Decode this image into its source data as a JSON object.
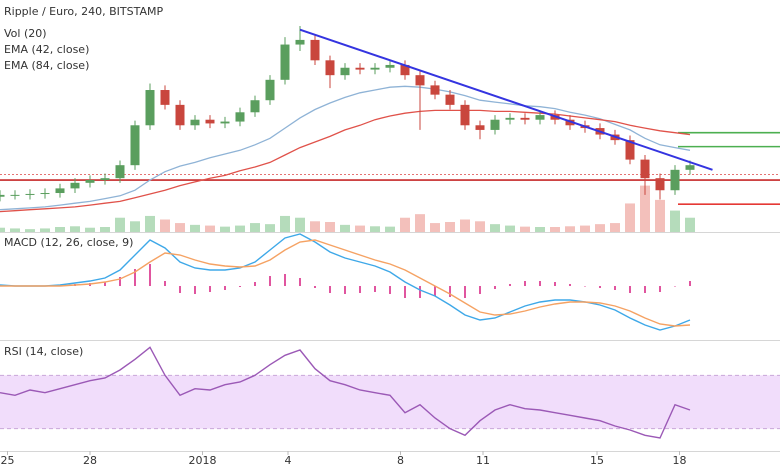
{
  "chart_data": [
    {
      "type": "candlestick",
      "title": "Ripple / Euro, 240, BITSTAMP",
      "xlim": [
        0,
        52
      ],
      "xticks": [
        {
          "value": 0.5,
          "label": "25"
        },
        {
          "value": 6,
          "label": "28"
        },
        {
          "value": 13.5,
          "label": "2018"
        },
        {
          "value": 19.2,
          "label": "4"
        },
        {
          "value": 26.7,
          "label": "8"
        },
        {
          "value": 32.2,
          "label": "11"
        },
        {
          "value": 39.8,
          "label": "15"
        },
        {
          "value": 45.3,
          "label": "18"
        }
      ],
      "ylim": [
        0.5,
        3.0
      ],
      "up_color": "#5a9e5e",
      "down_color": "#c9463d",
      "open": [
        0.88,
        0.9,
        0.9,
        0.91,
        0.92,
        0.97,
        1.03,
        1.06,
        1.08,
        1.22,
        1.65,
        2.03,
        1.87,
        1.65,
        1.71,
        1.67,
        1.69,
        1.79,
        1.92,
        2.14,
        2.52,
        2.57,
        2.35,
        2.19,
        2.27,
        2.25,
        2.27,
        2.3,
        2.19,
        2.08,
        1.98,
        1.87,
        1.65,
        1.6,
        1.71,
        1.73,
        1.71,
        1.76,
        1.71,
        1.65,
        1.62,
        1.55,
        1.49,
        1.28,
        1.08,
        0.95,
        1.17
      ],
      "high": [
        0.95,
        0.95,
        0.96,
        0.97,
        1.02,
        1.08,
        1.11,
        1.13,
        1.27,
        1.7,
        2.1,
        2.08,
        1.92,
        1.76,
        1.76,
        1.74,
        1.84,
        1.97,
        2.19,
        2.6,
        2.72,
        2.62,
        2.4,
        2.32,
        2.32,
        2.32,
        2.35,
        2.35,
        2.24,
        2.13,
        2.03,
        1.92,
        1.7,
        1.76,
        1.78,
        1.78,
        1.81,
        1.81,
        1.76,
        1.7,
        1.67,
        1.6,
        1.54,
        1.33,
        1.13,
        1.22,
        1.27
      ],
      "low": [
        0.83,
        0.85,
        0.85,
        0.86,
        0.87,
        0.92,
        0.98,
        1.01,
        1.03,
        1.17,
        1.6,
        1.82,
        1.6,
        1.6,
        1.62,
        1.62,
        1.64,
        1.74,
        1.87,
        2.09,
        2.45,
        2.3,
        2.05,
        2.14,
        2.2,
        2.2,
        2.22,
        2.14,
        1.6,
        1.93,
        1.82,
        1.6,
        1.5,
        1.55,
        1.66,
        1.66,
        1.66,
        1.66,
        1.6,
        1.57,
        1.5,
        1.44,
        1.23,
        0.9,
        0.85,
        0.9,
        1.12
      ],
      "close": [
        0.9,
        0.9,
        0.91,
        0.92,
        0.97,
        1.03,
        1.06,
        1.08,
        1.22,
        1.65,
        2.03,
        1.87,
        1.65,
        1.71,
        1.67,
        1.69,
        1.79,
        1.92,
        2.14,
        2.52,
        2.57,
        2.35,
        2.19,
        2.27,
        2.25,
        2.27,
        2.3,
        2.19,
        2.08,
        1.98,
        1.87,
        1.65,
        1.6,
        1.71,
        1.73,
        1.71,
        1.76,
        1.71,
        1.65,
        1.62,
        1.55,
        1.49,
        1.28,
        1.08,
        0.95,
        1.17,
        1.22
      ],
      "volume": {
        "name": "Vol (20)",
        "ylim": [
          0,
          650
        ],
        "up_color": "#b5dcbb",
        "down_color": "#f3c0bb",
        "values": [
          12,
          10,
          8,
          10,
          14,
          16,
          12,
          14,
          40,
          30,
          45,
          35,
          25,
          20,
          18,
          15,
          18,
          25,
          22,
          45,
          40,
          30,
          28,
          20,
          18,
          16,
          15,
          40,
          50,
          25,
          28,
          35,
          30,
          22,
          18,
          15,
          14,
          14,
          16,
          18,
          22,
          25,
          80,
          130,
          90,
          60,
          40
        ]
      },
      "overlays": [
        {
          "name": "EMA (42, close)",
          "color": "#8fb3d6",
          "values": [
            0.74,
            0.75,
            0.76,
            0.77,
            0.79,
            0.81,
            0.83,
            0.86,
            0.89,
            0.95,
            1.06,
            1.15,
            1.21,
            1.25,
            1.3,
            1.34,
            1.38,
            1.44,
            1.51,
            1.62,
            1.73,
            1.82,
            1.89,
            1.95,
            2.0,
            2.03,
            2.06,
            2.07,
            2.06,
            2.04,
            2.01,
            1.97,
            1.92,
            1.9,
            1.88,
            1.86,
            1.85,
            1.83,
            1.79,
            1.76,
            1.72,
            1.66,
            1.6,
            1.51,
            1.44,
            1.41,
            1.38
          ]
        },
        {
          "name": "EMA (84, close)",
          "color": "#e0524a",
          "values": [
            0.72,
            0.73,
            0.74,
            0.75,
            0.76,
            0.77,
            0.79,
            0.81,
            0.83,
            0.87,
            0.91,
            0.95,
            1.0,
            1.04,
            1.08,
            1.11,
            1.16,
            1.2,
            1.25,
            1.33,
            1.41,
            1.47,
            1.53,
            1.6,
            1.65,
            1.71,
            1.75,
            1.78,
            1.8,
            1.81,
            1.81,
            1.81,
            1.81,
            1.8,
            1.8,
            1.79,
            1.78,
            1.77,
            1.75,
            1.73,
            1.71,
            1.69,
            1.65,
            1.62,
            1.59,
            1.57,
            1.55
          ]
        }
      ],
      "trendline": {
        "color": "#3434e0",
        "x": [
          20,
          47.5
        ],
        "values": [
          2.68,
          1.17
        ]
      },
      "levels": [
        {
          "value": 1.57,
          "color": "#4caf50",
          "from": 45.2
        },
        {
          "value": 1.42,
          "color": "#4caf50",
          "from": 45.2
        },
        {
          "value": 1.12,
          "color": "#e57373",
          "from": 0,
          "dash": true
        },
        {
          "value": 1.06,
          "color": "#c62828",
          "from": 0
        },
        {
          "value": 0.8,
          "color": "#e53935",
          "from": 45.2
        }
      ]
    },
    {
      "type": "macd",
      "title": "MACD (12, 26, close, 9)",
      "ylim": [
        -0.2,
        0.2
      ],
      "histogram": {
        "color": "#e0559f",
        "values": [
          0.004,
          0,
          0,
          0,
          0.004,
          0.008,
          0.012,
          0.016,
          0.036,
          0.068,
          0.088,
          0.02,
          -0.028,
          -0.032,
          -0.024,
          -0.016,
          -0.004,
          0.016,
          0.04,
          0.048,
          0.032,
          -0.008,
          -0.028,
          -0.032,
          -0.028,
          -0.024,
          -0.032,
          -0.048,
          -0.048,
          -0.04,
          -0.044,
          -0.048,
          -0.032,
          -0.012,
          0.008,
          0.02,
          0.02,
          0.016,
          0.008,
          0,
          -0.008,
          -0.016,
          -0.028,
          -0.028,
          -0.024,
          0,
          0.02
        ]
      },
      "series": [
        {
          "color": "#3ea8e8",
          "values": [
            0.004,
            0,
            0,
            0,
            0.004,
            0.012,
            0.02,
            0.032,
            0.064,
            0.124,
            0.184,
            0.152,
            0.096,
            0.072,
            0.064,
            0.064,
            0.072,
            0.096,
            0.144,
            0.192,
            0.208,
            0.176,
            0.136,
            0.112,
            0.096,
            0.08,
            0.056,
            0.016,
            -0.016,
            -0.04,
            -0.076,
            -0.116,
            -0.136,
            -0.128,
            -0.104,
            -0.08,
            -0.064,
            -0.056,
            -0.056,
            -0.064,
            -0.076,
            -0.096,
            -0.128,
            -0.156,
            -0.176,
            -0.16,
            -0.136
          ]
        },
        {
          "color": "#f5a263",
          "values": [
            0,
            0,
            0,
            0,
            0,
            0.004,
            0.008,
            0.016,
            0.028,
            0.056,
            0.096,
            0.132,
            0.124,
            0.104,
            0.088,
            0.08,
            0.076,
            0.08,
            0.104,
            0.144,
            0.176,
            0.184,
            0.164,
            0.144,
            0.124,
            0.104,
            0.088,
            0.064,
            0.032,
            0,
            -0.032,
            -0.068,
            -0.104,
            -0.116,
            -0.112,
            -0.1,
            -0.084,
            -0.072,
            -0.064,
            -0.064,
            -0.068,
            -0.08,
            -0.1,
            -0.128,
            -0.152,
            -0.16,
            -0.156
          ]
        }
      ]
    },
    {
      "type": "rsi",
      "title": "RSI (14, close)",
      "ylim": [
        14,
        95
      ],
      "band": [
        30,
        70
      ],
      "band_color": "#f1ddfb",
      "series": [
        {
          "color": "#9b59b6",
          "values": [
            57,
            55,
            59,
            57,
            60,
            63,
            66,
            68,
            74,
            82,
            91,
            70,
            55,
            60,
            59,
            63,
            65,
            70,
            78,
            85,
            89,
            75,
            66,
            63,
            59,
            57,
            55,
            42,
            48,
            38,
            30,
            25,
            36,
            44,
            48,
            45,
            44,
            42,
            40,
            38,
            36,
            32,
            29,
            25,
            23,
            48,
            44
          ]
        }
      ]
    }
  ]
}
